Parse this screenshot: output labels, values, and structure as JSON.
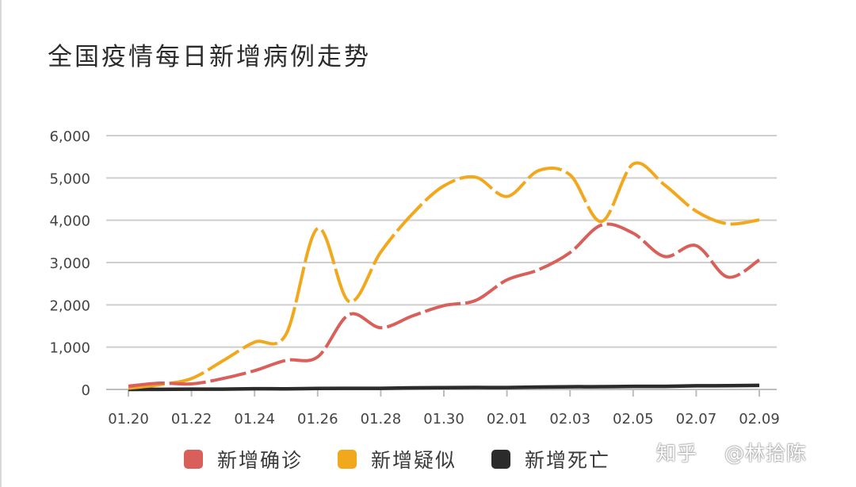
{
  "colors": {
    "confirmed": "#d9605a",
    "suspected": "#f2a81d",
    "deaths": "#2b2b2b",
    "grid": "#cfcfcf",
    "axis": "#bdbdbd",
    "tick_text": "#444444"
  },
  "watermark": {
    "text1": "知乎",
    "text2": "@林拾陈"
  },
  "chart_data": {
    "type": "line",
    "title": "全国疫情每日新增病例走势",
    "xlabel": "",
    "ylabel": "",
    "x": [
      "01.20",
      "01.21",
      "01.22",
      "01.23",
      "01.24",
      "01.25",
      "01.26",
      "01.27",
      "01.28",
      "01.29",
      "01.30",
      "01.31",
      "02.01",
      "02.02",
      "02.03",
      "02.04",
      "02.05",
      "02.06",
      "02.07",
      "02.08",
      "02.09"
    ],
    "x_tick_labels": [
      "01.20",
      "01.22",
      "01.24",
      "01.26",
      "01.28",
      "01.30",
      "02.01",
      "02.03",
      "02.05",
      "02.07",
      "02.09"
    ],
    "ylim": [
      0,
      6000
    ],
    "y_ticks": [
      0,
      1000,
      2000,
      3000,
      4000,
      5000,
      6000
    ],
    "y_tick_labels": [
      "0",
      "1,000",
      "2,000",
      "3,000",
      "4,000",
      "5,000",
      "6,000"
    ],
    "grid": true,
    "legend_position": "bottom",
    "series": [
      {
        "name": "新增确诊",
        "color_key": "confirmed",
        "dash": true,
        "values": [
          77,
          149,
          131,
          259,
          444,
          688,
          769,
          1771,
          1459,
          1737,
          1982,
          2102,
          2590,
          2829,
          3235,
          3887,
          3694,
          3143,
          3399,
          2656,
          3062
        ]
      },
      {
        "name": "新增疑似",
        "color_key": "suspected",
        "dash": true,
        "values": [
          27,
          112,
          257,
          680,
          1118,
          1309,
          3806,
          2077,
          3248,
          4148,
          4812,
          5019,
          4562,
          5173,
          5072,
          3971,
          5328,
          4833,
          4214,
          3916,
          4008
        ]
      },
      {
        "name": "新增死亡",
        "color_key": "deaths",
        "dash": false,
        "values": [
          0,
          3,
          8,
          8,
          16,
          15,
          24,
          26,
          26,
          38,
          43,
          46,
          45,
          57,
          64,
          65,
          73,
          73,
          86,
          89,
          97
        ]
      }
    ]
  }
}
